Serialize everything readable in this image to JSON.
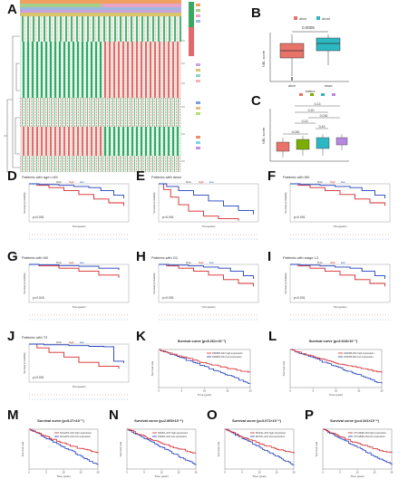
{
  "panels": {
    "A": {
      "label": "A"
    },
    "B": {
      "label": "B",
      "title": "",
      "p": "0.0005",
      "xlabel": "status",
      "ylabel": "NBL score",
      "categories": [
        "alive",
        "dead"
      ],
      "legend": [
        "alive",
        "dead"
      ]
    },
    "C": {
      "label": "C",
      "ylabel": "NBL score",
      "pvals": [
        "0.13",
        "0.20",
        "0.016",
        "0.13",
        "0.43",
        "0.030"
      ]
    },
    "D": {
      "label": "D",
      "title": "Patients with age<=65",
      "p": "p<0.001"
    },
    "E": {
      "label": "E",
      "title": "Patients with dead",
      "p": "p<0.001"
    },
    "F": {
      "label": "F",
      "title": "Patients with M0",
      "p": "p<0.001"
    },
    "G": {
      "label": "G",
      "title": "Patients with N0",
      "p": "p=0.015"
    },
    "H": {
      "label": "H",
      "title": "Patients with G1",
      "p": "p<0.001"
    },
    "I": {
      "label": "I",
      "title": "Patients with stage I-2",
      "p": "p<0.001"
    },
    "J": {
      "label": "J",
      "title": "Patients with T2",
      "p": "p<0.001"
    },
    "K": {
      "label": "K",
      "title": "Survival curve (p=8.261×10⁻⁷)",
      "legend": [
        "FRMD6-AS1 high expression",
        "FRMD6-AS1 low expression"
      ]
    },
    "L": {
      "label": "L",
      "title": "Survival curve (p=6.618×10⁻⁷)",
      "legend": [
        "LINP1B-AS1 high expression",
        "LINP1B-AS1 low expression"
      ]
    },
    "M": {
      "label": "M",
      "title": "Survival curve (p=9.27×10⁻⁷)",
      "legend": [
        "DLGAP1-AS1 high expression",
        "DLGAP1-AS1 low expression"
      ]
    },
    "N": {
      "label": "N",
      "title": "Survival curve (p=2.805×10⁻⁶)",
      "legend": [
        "SNHF1-AS1 high expression",
        "SNHF1-AS1 low expression"
      ]
    },
    "O": {
      "label": "O",
      "title": "Survival curve (p=3.071×10⁻⁶)",
      "legend": [
        "MCF2L-AS1 high expression",
        "MCF2L-AS1 low expression"
      ]
    },
    "P": {
      "label": "P",
      "title": "Survival curve (p=4.341×10⁻⁶)",
      "legend": [
        "CTC4398-AS1 high expression",
        "CTC4398-AS1 low expression"
      ]
    }
  },
  "km_axes": {
    "ylabel": "Survival probability",
    "xlabel": "Time(years)",
    "risk_strata": [
      "high",
      "low"
    ]
  },
  "surv_axes": {
    "ylabel": "Survival rate",
    "xlabel": "Time (year)",
    "xticks": [
      "0",
      "5",
      "10",
      "15",
      "20"
    ]
  },
  "colors": {
    "high": "#d62728",
    "low": "#1f3fbf",
    "boxAlive": "#e8736a",
    "boxDead": "#2bb8c2",
    "boxC": [
      "#e8736a",
      "#7cae00",
      "#2bb8c2",
      "#b888e0"
    ]
  }
}
